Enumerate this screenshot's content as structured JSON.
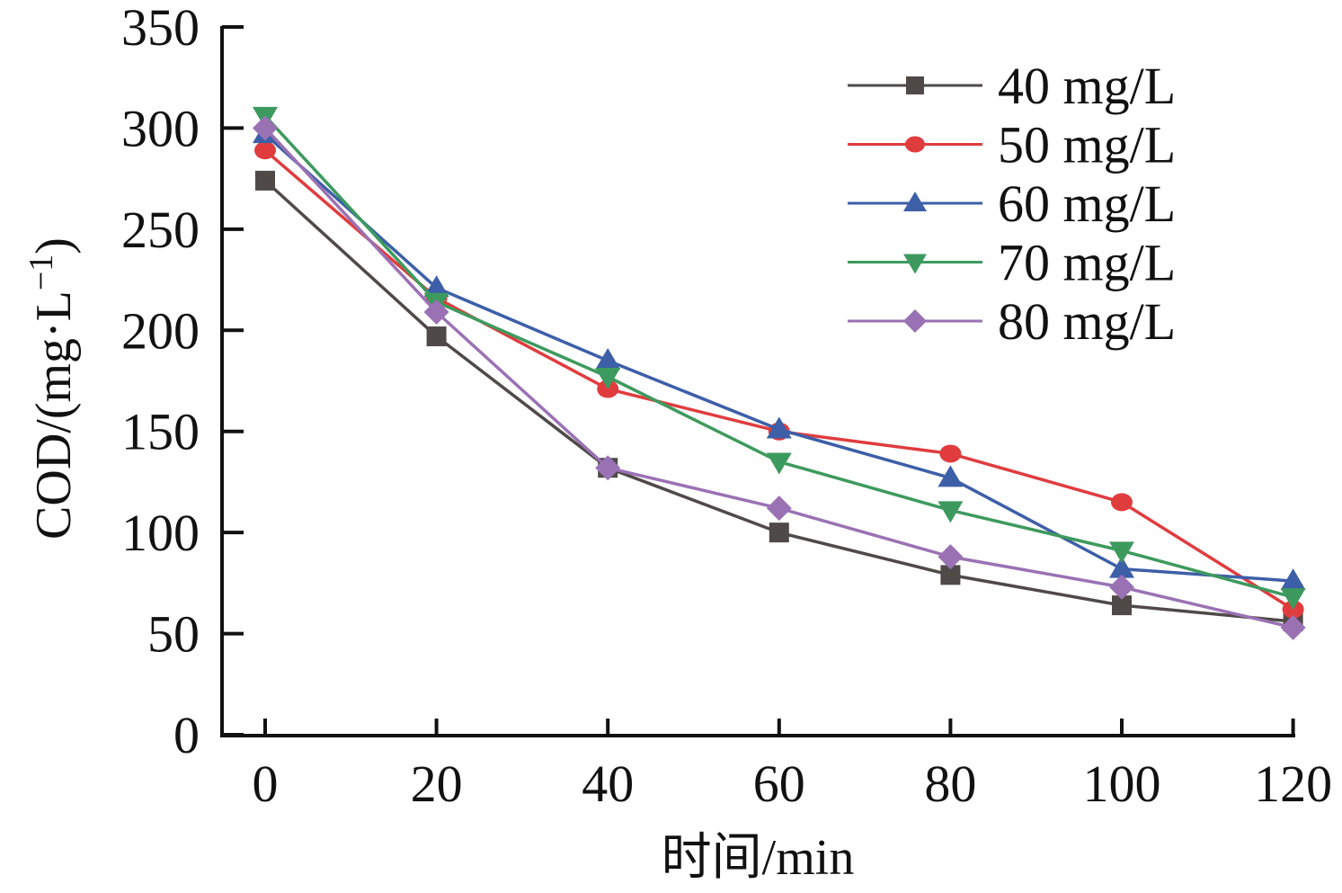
{
  "chart_data": {
    "type": "line",
    "title": "",
    "xlabel": "时间/min",
    "ylabel": "COD/(mg·L⁻¹)",
    "ylabel_parts": {
      "main": "COD/(mg·L",
      "sup": "−1",
      "close": ")"
    },
    "x": [
      0,
      20,
      40,
      60,
      80,
      100,
      120
    ],
    "xlim": [
      -5,
      120
    ],
    "ylim": [
      0,
      350
    ],
    "xticks": [
      0,
      20,
      40,
      60,
      80,
      100,
      120
    ],
    "yticks": [
      0,
      50,
      100,
      150,
      200,
      250,
      300,
      350
    ],
    "grid": false,
    "legend_position": "top-right",
    "series": [
      {
        "name": "40 mg/L",
        "marker": "square",
        "color": "#4f4a48",
        "values": [
          274,
          197,
          132,
          100,
          79,
          64,
          56
        ]
      },
      {
        "name": "50 mg/L",
        "marker": "circle",
        "color": "#e03c3e",
        "values": [
          289,
          216,
          171,
          150,
          139,
          115,
          62
        ]
      },
      {
        "name": "60 mg/L",
        "marker": "triangle-up",
        "color": "#3d5fa8",
        "values": [
          297,
          221,
          185,
          151,
          127,
          82,
          76
        ]
      },
      {
        "name": "70 mg/L",
        "marker": "triangle-down",
        "color": "#3d9a5e",
        "values": [
          306,
          214,
          177,
          135,
          111,
          91,
          68
        ]
      },
      {
        "name": "80 mg/L",
        "marker": "diamond",
        "color": "#9a72b4",
        "values": [
          300,
          209,
          132,
          112,
          88,
          73,
          53
        ]
      }
    ]
  }
}
